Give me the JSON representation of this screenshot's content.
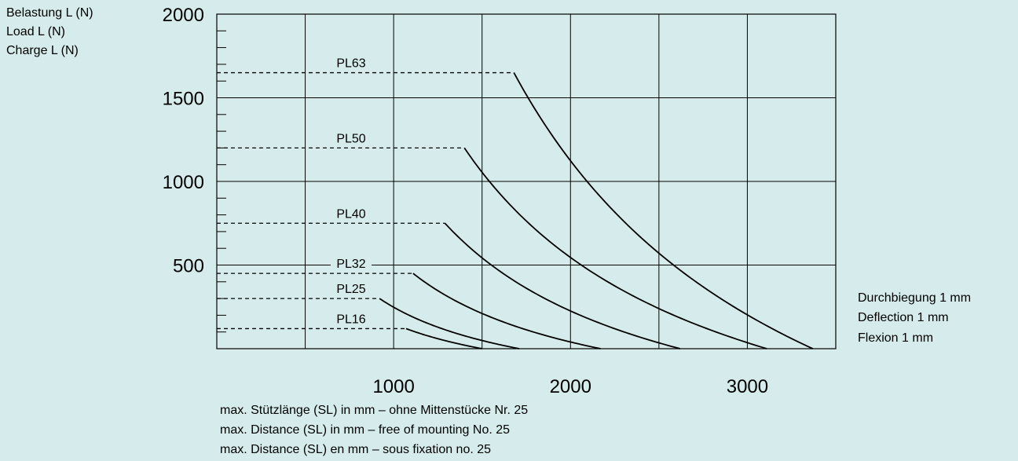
{
  "chart_data": {
    "type": "line",
    "ylabel": [
      "Belastung L (N)",
      "Load L (N)",
      "Charge L (N)"
    ],
    "xlabel": [
      "max. Stützlänge (SL) in mm – ohne Mittenstücke Nr. 25",
      "max. Distance (SL) in mm – free of mounting No. 25",
      "max. Distance (SL) en mm – sous fixation no. 25"
    ],
    "annotation": [
      "Durchbiegung 1 mm",
      "Deflection 1 mm",
      "Flexion 1 mm"
    ],
    "xlim": [
      0,
      3500
    ],
    "ylim": [
      0,
      2000
    ],
    "x_ticks": [
      1000,
      2000,
      3000
    ],
    "y_ticks": [
      500,
      1000,
      1500,
      2000
    ],
    "x_grid_step": 500,
    "y_minor_step": 100,
    "grid": true,
    "series": [
      {
        "name": "PL63",
        "max_load": 1650,
        "x_start": 1680,
        "x_end": 3370
      },
      {
        "name": "PL50",
        "max_load": 1200,
        "x_start": 1400,
        "x_end": 3110
      },
      {
        "name": "PL40",
        "max_load": 750,
        "x_start": 1290,
        "x_end": 2620
      },
      {
        "name": "PL32",
        "max_load": 450,
        "x_start": 1110,
        "x_end": 2170
      },
      {
        "name": "PL25",
        "max_load": 300,
        "x_start": 920,
        "x_end": 1710
      },
      {
        "name": "PL16",
        "max_load": 120,
        "x_start": 1070,
        "x_end": 1500
      }
    ]
  }
}
